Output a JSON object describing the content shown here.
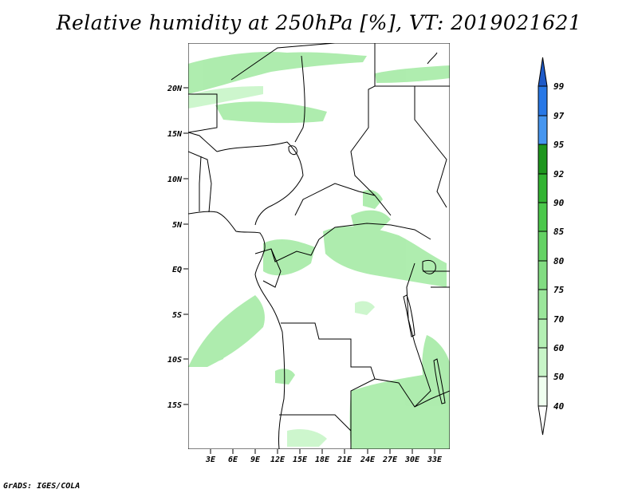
{
  "title": "Relative humidity at 250hPa [%], VT: 2019021621",
  "credit": "GrADS: IGES/COLA",
  "map": {
    "lat_labels": [
      "20N",
      "15N",
      "10N",
      "5N",
      "EQ",
      "5S",
      "10S",
      "15S"
    ],
    "lon_labels": [
      "3E",
      "6E",
      "9E",
      "12E",
      "15E",
      "18E",
      "21E",
      "24E",
      "27E",
      "30E",
      "33E"
    ]
  },
  "colorbar": {
    "levels": [
      "40",
      "50",
      "60",
      "70",
      "75",
      "80",
      "85",
      "90",
      "92",
      "95",
      "97",
      "99"
    ],
    "colors": [
      "#f0fff0",
      "#c8f5c8",
      "#b4f0b4",
      "#9be69b",
      "#82dc82",
      "#64d264",
      "#4bc84b",
      "#32b432",
      "#1e961e",
      "#4696f0",
      "#2878e6",
      "#1e5ac8"
    ]
  },
  "colors": {
    "land_border": "#000000",
    "humidity_shading": "#a6eba6"
  }
}
